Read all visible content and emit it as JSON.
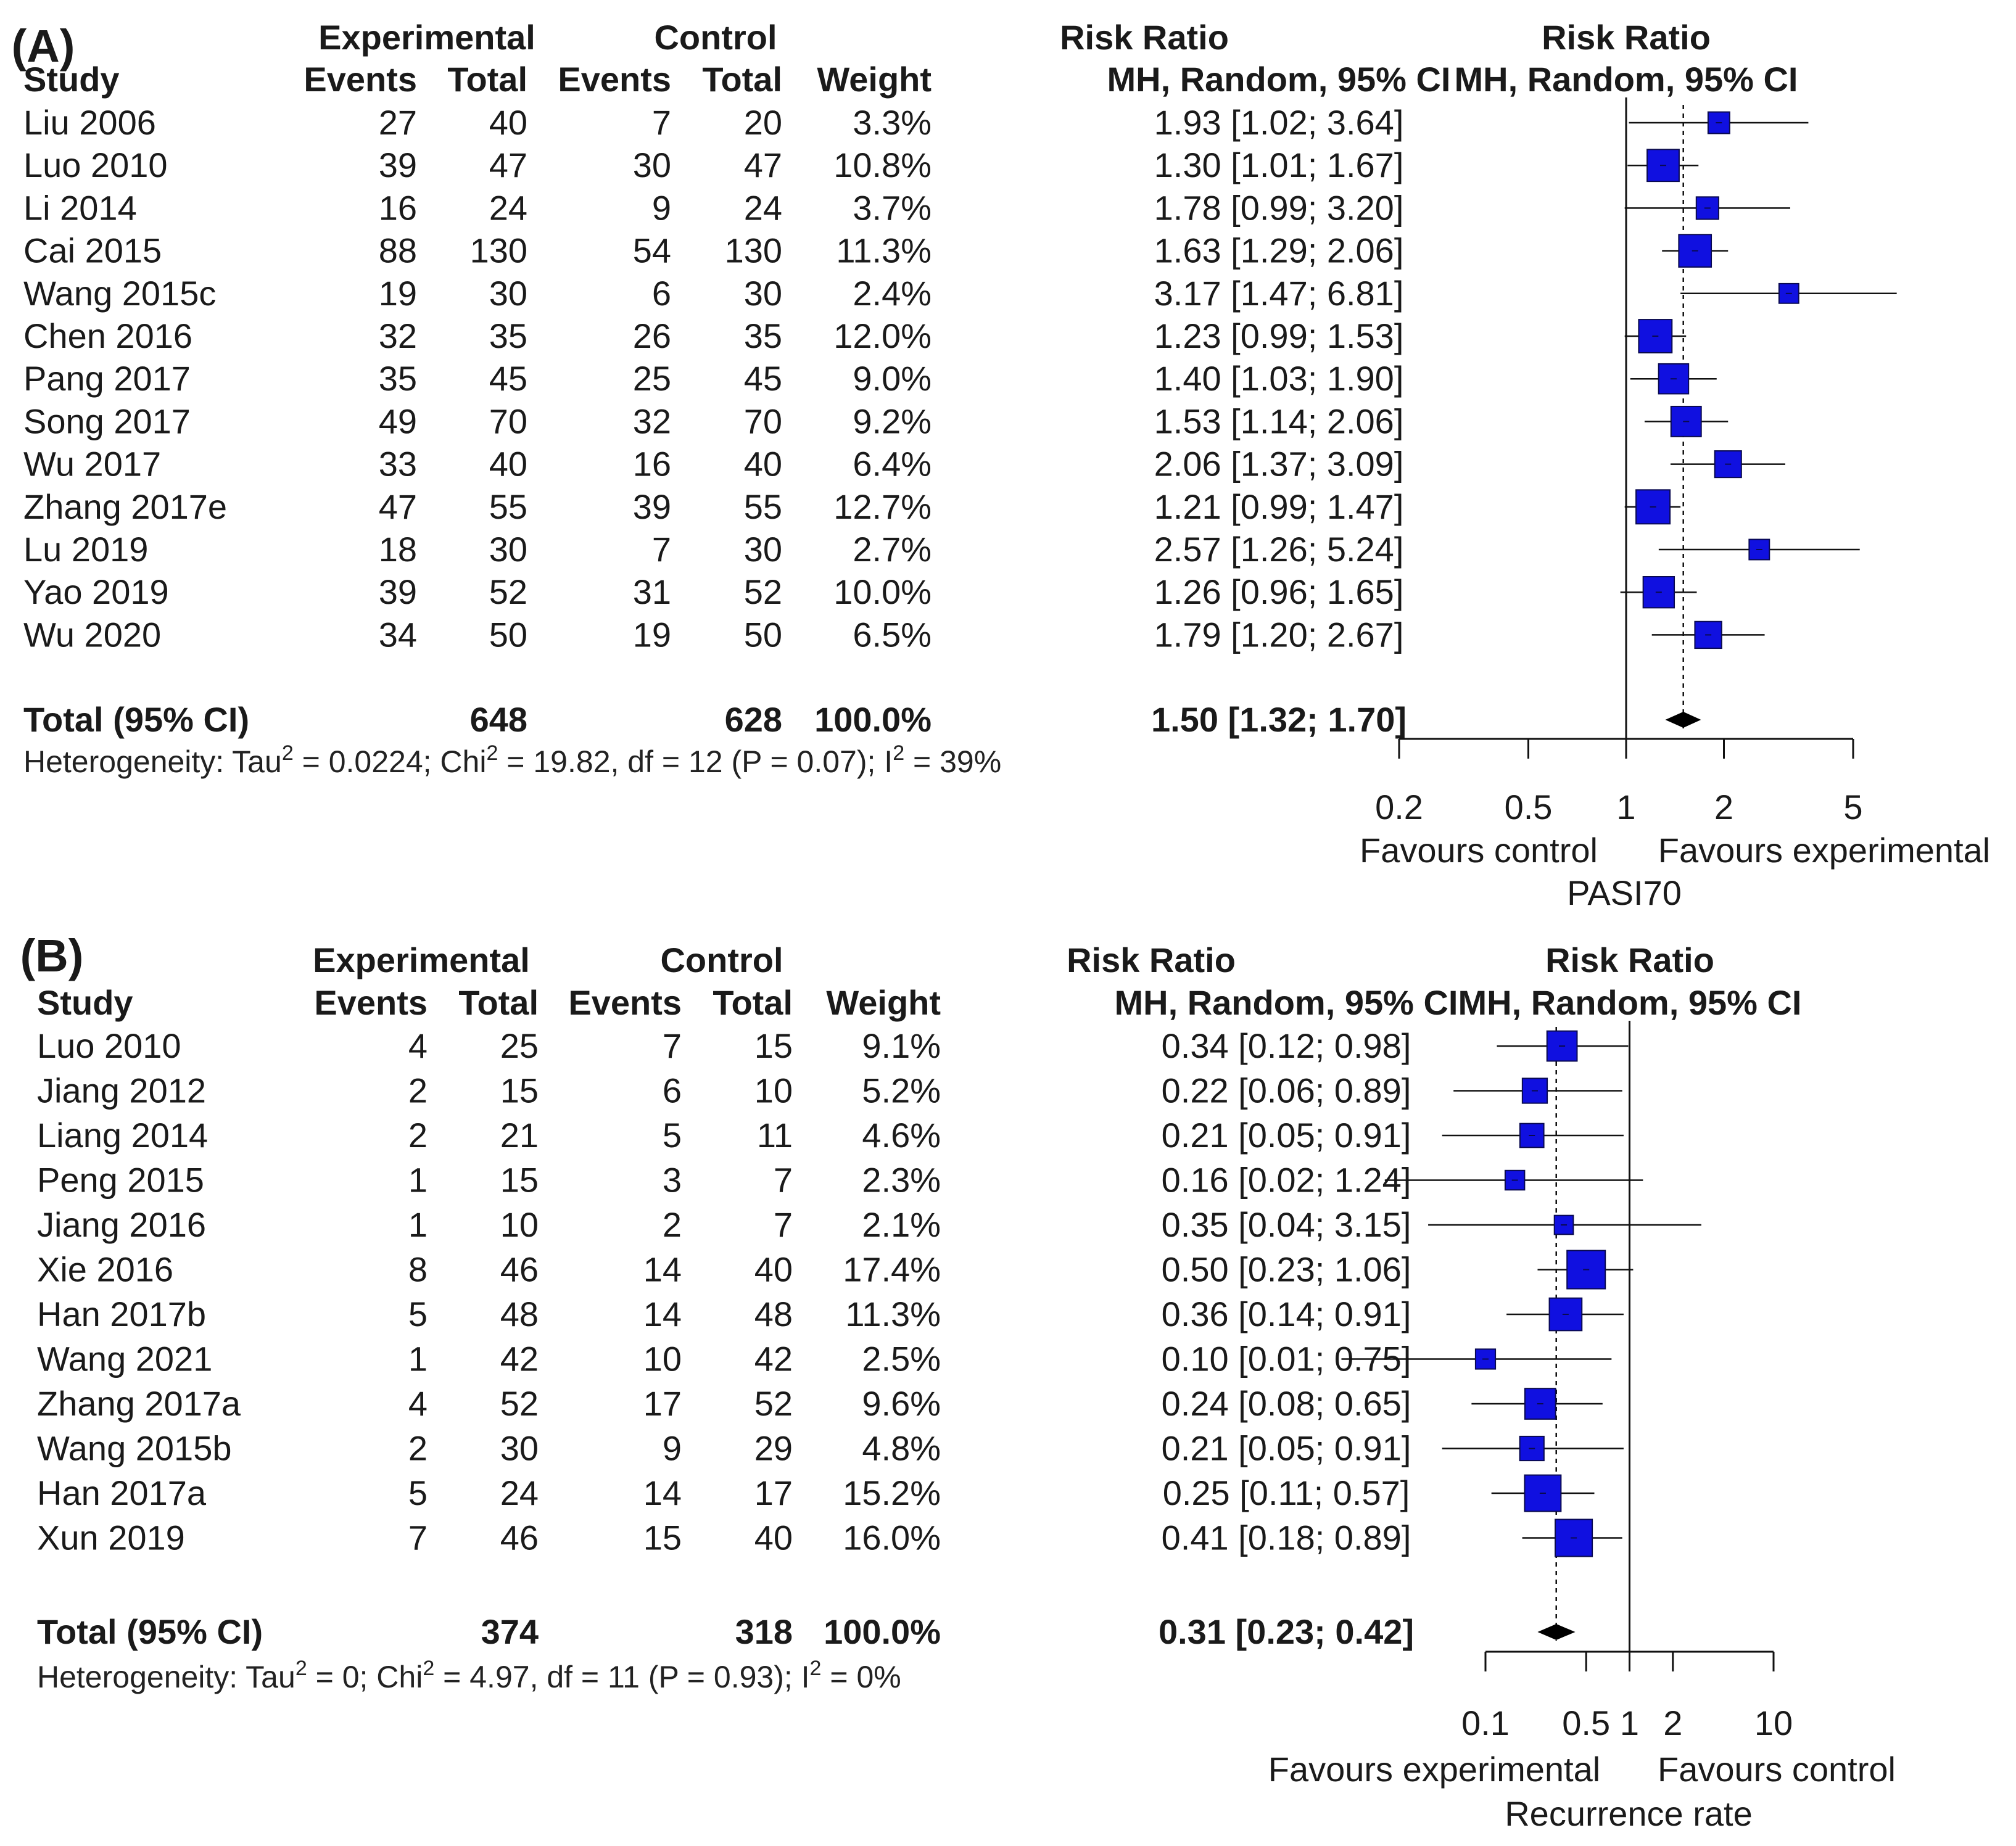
{
  "colors": {
    "box": "#1010e0",
    "box_stroke": "#0a0a50",
    "line": "#111111",
    "text": "#1a1a1a"
  },
  "chart_data": [
    {
      "type": "forest",
      "panel": "(A)",
      "headers": {
        "group1": "Experimental",
        "group2": "Control",
        "effect": "Risk Ratio",
        "study": "Study",
        "events": "Events",
        "total": "Total",
        "weight": "Weight",
        "method": "MH, Random, 95% CI",
        "plot_title": "Risk Ratio",
        "plot_method": "MH, Random, 95% CI"
      },
      "studies": [
        {
          "name": "Liu 2006",
          "e_ev": "27",
          "e_tot": "40",
          "c_ev": "7",
          "c_tot": "20",
          "weight": "3.3%",
          "ci_text": "1.93 [1.02; 3.64]",
          "rr": 1.93,
          "lo": 1.02,
          "hi": 3.64,
          "w": 3.3
        },
        {
          "name": "Luo 2010",
          "e_ev": "39",
          "e_tot": "47",
          "c_ev": "30",
          "c_tot": "47",
          "weight": "10.8%",
          "ci_text": "1.30 [1.01; 1.67]",
          "rr": 1.3,
          "lo": 1.01,
          "hi": 1.67,
          "w": 10.8
        },
        {
          "name": "Li 2014",
          "e_ev": "16",
          "e_tot": "24",
          "c_ev": "9",
          "c_tot": "24",
          "weight": "3.7%",
          "ci_text": "1.78 [0.99; 3.20]",
          "rr": 1.78,
          "lo": 0.99,
          "hi": 3.2,
          "w": 3.7
        },
        {
          "name": "Cai 2015",
          "e_ev": "88",
          "e_tot": "130",
          "c_ev": "54",
          "c_tot": "130",
          "weight": "11.3%",
          "ci_text": "1.63 [1.29; 2.06]",
          "rr": 1.63,
          "lo": 1.29,
          "hi": 2.06,
          "w": 11.3
        },
        {
          "name": "Wang 2015c",
          "e_ev": "19",
          "e_tot": "30",
          "c_ev": "6",
          "c_tot": "30",
          "weight": "2.4%",
          "ci_text": "3.17 [1.47; 6.81]",
          "rr": 3.17,
          "lo": 1.47,
          "hi": 6.81,
          "w": 2.4
        },
        {
          "name": "Chen 2016",
          "e_ev": "32",
          "e_tot": "35",
          "c_ev": "26",
          "c_tot": "35",
          "weight": "12.0%",
          "ci_text": "1.23 [0.99; 1.53]",
          "rr": 1.23,
          "lo": 0.99,
          "hi": 1.53,
          "w": 12.0
        },
        {
          "name": "Pang 2017",
          "e_ev": "35",
          "e_tot": "45",
          "c_ev": "25",
          "c_tot": "45",
          "weight": "9.0%",
          "ci_text": "1.40 [1.03; 1.90]",
          "rr": 1.4,
          "lo": 1.03,
          "hi": 1.9,
          "w": 9.0
        },
        {
          "name": "Song 2017",
          "e_ev": "49",
          "e_tot": "70",
          "c_ev": "32",
          "c_tot": "70",
          "weight": "9.2%",
          "ci_text": "1.53 [1.14; 2.06]",
          "rr": 1.53,
          "lo": 1.14,
          "hi": 2.06,
          "w": 9.2
        },
        {
          "name": "Wu 2017",
          "e_ev": "33",
          "e_tot": "40",
          "c_ev": "16",
          "c_tot": "40",
          "weight": "6.4%",
          "ci_text": "2.06 [1.37; 3.09]",
          "rr": 2.06,
          "lo": 1.37,
          "hi": 3.09,
          "w": 6.4
        },
        {
          "name": "Zhang 2017e",
          "e_ev": "47",
          "e_tot": "55",
          "c_ev": "39",
          "c_tot": "55",
          "weight": "12.7%",
          "ci_text": "1.21 [0.99; 1.47]",
          "rr": 1.21,
          "lo": 0.99,
          "hi": 1.47,
          "w": 12.7
        },
        {
          "name": "Lu 2019",
          "e_ev": "18",
          "e_tot": "30",
          "c_ev": "7",
          "c_tot": "30",
          "weight": "2.7%",
          "ci_text": "2.57 [1.26; 5.24]",
          "rr": 2.57,
          "lo": 1.26,
          "hi": 5.24,
          "w": 2.7
        },
        {
          "name": "Yao 2019",
          "e_ev": "39",
          "e_tot": "52",
          "c_ev": "31",
          "c_tot": "52",
          "weight": "10.0%",
          "ci_text": "1.26 [0.96; 1.65]",
          "rr": 1.26,
          "lo": 0.96,
          "hi": 1.65,
          "w": 10.0
        },
        {
          "name": "Wu 2020",
          "e_ev": "34",
          "e_tot": "50",
          "c_ev": "19",
          "c_tot": "50",
          "weight": "6.5%",
          "ci_text": "1.79 [1.20; 2.67]",
          "rr": 1.79,
          "lo": 1.2,
          "hi": 2.67,
          "w": 6.5
        }
      ],
      "total": {
        "label": "Total (95% CI)",
        "e_tot": "648",
        "c_tot": "628",
        "weight": "100.0%",
        "ci_text": "1.50 [1.32; 1.70]",
        "rr": 1.5,
        "lo": 1.32,
        "hi": 1.7
      },
      "heterogeneity": {
        "prefix": "Heterogeneity: Tau",
        "tau2": " = 0.0224; Chi",
        "chi2": " = 19.82, df = 12 (P = 0.07); I",
        "i2": " = 39%",
        "sup": "2"
      },
      "axis": {
        "ticks": [
          0.2,
          0.5,
          1,
          2,
          5
        ],
        "tick_labels": [
          "0.2",
          "0.5",
          "1",
          "2",
          "5"
        ],
        "xlim": [
          0.2,
          5
        ],
        "null": 1,
        "scale": "log"
      },
      "favours_left": "Favours control",
      "favours_right": "Favours experimental",
      "xlabel": "PASI70"
    },
    {
      "type": "forest",
      "panel": "(B)",
      "headers": {
        "group1": "Experimental",
        "group2": "Control",
        "effect": "Risk Ratio",
        "study": "Study",
        "events": "Events",
        "total": "Total",
        "weight": "Weight",
        "method": "MH, Random, 95% CI",
        "plot_title": "Risk Ratio",
        "plot_method": "MH, Random, 95% CI"
      },
      "studies": [
        {
          "name": "Luo 2010",
          "e_ev": "4",
          "e_tot": "25",
          "c_ev": "7",
          "c_tot": "15",
          "weight": "9.1%",
          "ci_text": "0.34 [0.12; 0.98]",
          "rr": 0.34,
          "lo": 0.12,
          "hi": 0.98,
          "w": 9.1
        },
        {
          "name": "Jiang 2012",
          "e_ev": "2",
          "e_tot": "15",
          "c_ev": "6",
          "c_tot": "10",
          "weight": "5.2%",
          "ci_text": "0.22 [0.06; 0.89]",
          "rr": 0.22,
          "lo": 0.06,
          "hi": 0.89,
          "w": 5.2
        },
        {
          "name": "Liang 2014",
          "e_ev": "2",
          "e_tot": "21",
          "c_ev": "5",
          "c_tot": "11",
          "weight": "4.6%",
          "ci_text": "0.21 [0.05; 0.91]",
          "rr": 0.21,
          "lo": 0.05,
          "hi": 0.91,
          "w": 4.6
        },
        {
          "name": "Peng 2015",
          "e_ev": "1",
          "e_tot": "15",
          "c_ev": "3",
          "c_tot": "7",
          "weight": "2.3%",
          "ci_text": "0.16 [0.02; 1.24]",
          "rr": 0.16,
          "lo": 0.02,
          "hi": 1.24,
          "w": 2.3
        },
        {
          "name": "Jiang 2016",
          "e_ev": "1",
          "e_tot": "10",
          "c_ev": "2",
          "c_tot": "7",
          "weight": "2.1%",
          "ci_text": "0.35 [0.04; 3.15]",
          "rr": 0.35,
          "lo": 0.04,
          "hi": 3.15,
          "w": 2.1
        },
        {
          "name": "Xie 2016",
          "e_ev": "8",
          "e_tot": "46",
          "c_ev": "14",
          "c_tot": "40",
          "weight": "17.4%",
          "ci_text": "0.50 [0.23; 1.06]",
          "rr": 0.5,
          "lo": 0.23,
          "hi": 1.06,
          "w": 17.4
        },
        {
          "name": "Han 2017b",
          "e_ev": "5",
          "e_tot": "48",
          "c_ev": "14",
          "c_tot": "48",
          "weight": "11.3%",
          "ci_text": "0.36 [0.14; 0.91]",
          "rr": 0.36,
          "lo": 0.14,
          "hi": 0.91,
          "w": 11.3
        },
        {
          "name": "Wang 2021",
          "e_ev": "1",
          "e_tot": "42",
          "c_ev": "10",
          "c_tot": "42",
          "weight": "2.5%",
          "ci_text": "0.10 [0.01; 0.75]",
          "rr": 0.1,
          "lo": 0.01,
          "hi": 0.75,
          "w": 2.5
        },
        {
          "name": "Zhang 2017a",
          "e_ev": "4",
          "e_tot": "52",
          "c_ev": "17",
          "c_tot": "52",
          "weight": "9.6%",
          "ci_text": "0.24 [0.08; 0.65]",
          "rr": 0.24,
          "lo": 0.08,
          "hi": 0.65,
          "w": 9.6
        },
        {
          "name": "Wang 2015b",
          "e_ev": "2",
          "e_tot": "30",
          "c_ev": "9",
          "c_tot": "29",
          "weight": "4.8%",
          "ci_text": "0.21 [0.05; 0.91]",
          "rr": 0.21,
          "lo": 0.05,
          "hi": 0.91,
          "w": 4.8
        },
        {
          "name": "Han 2017a",
          "e_ev": "5",
          "e_tot": "24",
          "c_ev": "14",
          "c_tot": "17",
          "weight": "15.2%",
          "ci_text": "0.25 [0.11; 0.57]",
          "rr": 0.25,
          "lo": 0.11,
          "hi": 0.57,
          "w": 15.2
        },
        {
          "name": "Xun 2019",
          "e_ev": "7",
          "e_tot": "46",
          "c_ev": "15",
          "c_tot": "40",
          "weight": "16.0%",
          "ci_text": "0.41 [0.18; 0.89]",
          "rr": 0.41,
          "lo": 0.18,
          "hi": 0.89,
          "w": 16.0
        }
      ],
      "total": {
        "label": "Total (95% CI)",
        "e_tot": "374",
        "c_tot": "318",
        "weight": "100.0%",
        "ci_text": "0.31 [0.23; 0.42]",
        "rr": 0.31,
        "lo": 0.23,
        "hi": 0.42
      },
      "heterogeneity": {
        "prefix": "Heterogeneity: Tau",
        "tau2": " = 0; Chi",
        "chi2": " = 4.97, df = 11 (P = 0.93); I",
        "i2": " = 0%",
        "sup": "2"
      },
      "axis": {
        "ticks": [
          0.1,
          0.5,
          1,
          2,
          10
        ],
        "tick_labels": [
          "0.1",
          "0.5",
          "1",
          "2",
          "10"
        ],
        "xlim": [
          0.1,
          10
        ],
        "null": 1,
        "scale": "log"
      },
      "favours_left": "Favours experimental",
      "favours_right": "Favours control",
      "xlabel": "Recurrence rate"
    }
  ]
}
